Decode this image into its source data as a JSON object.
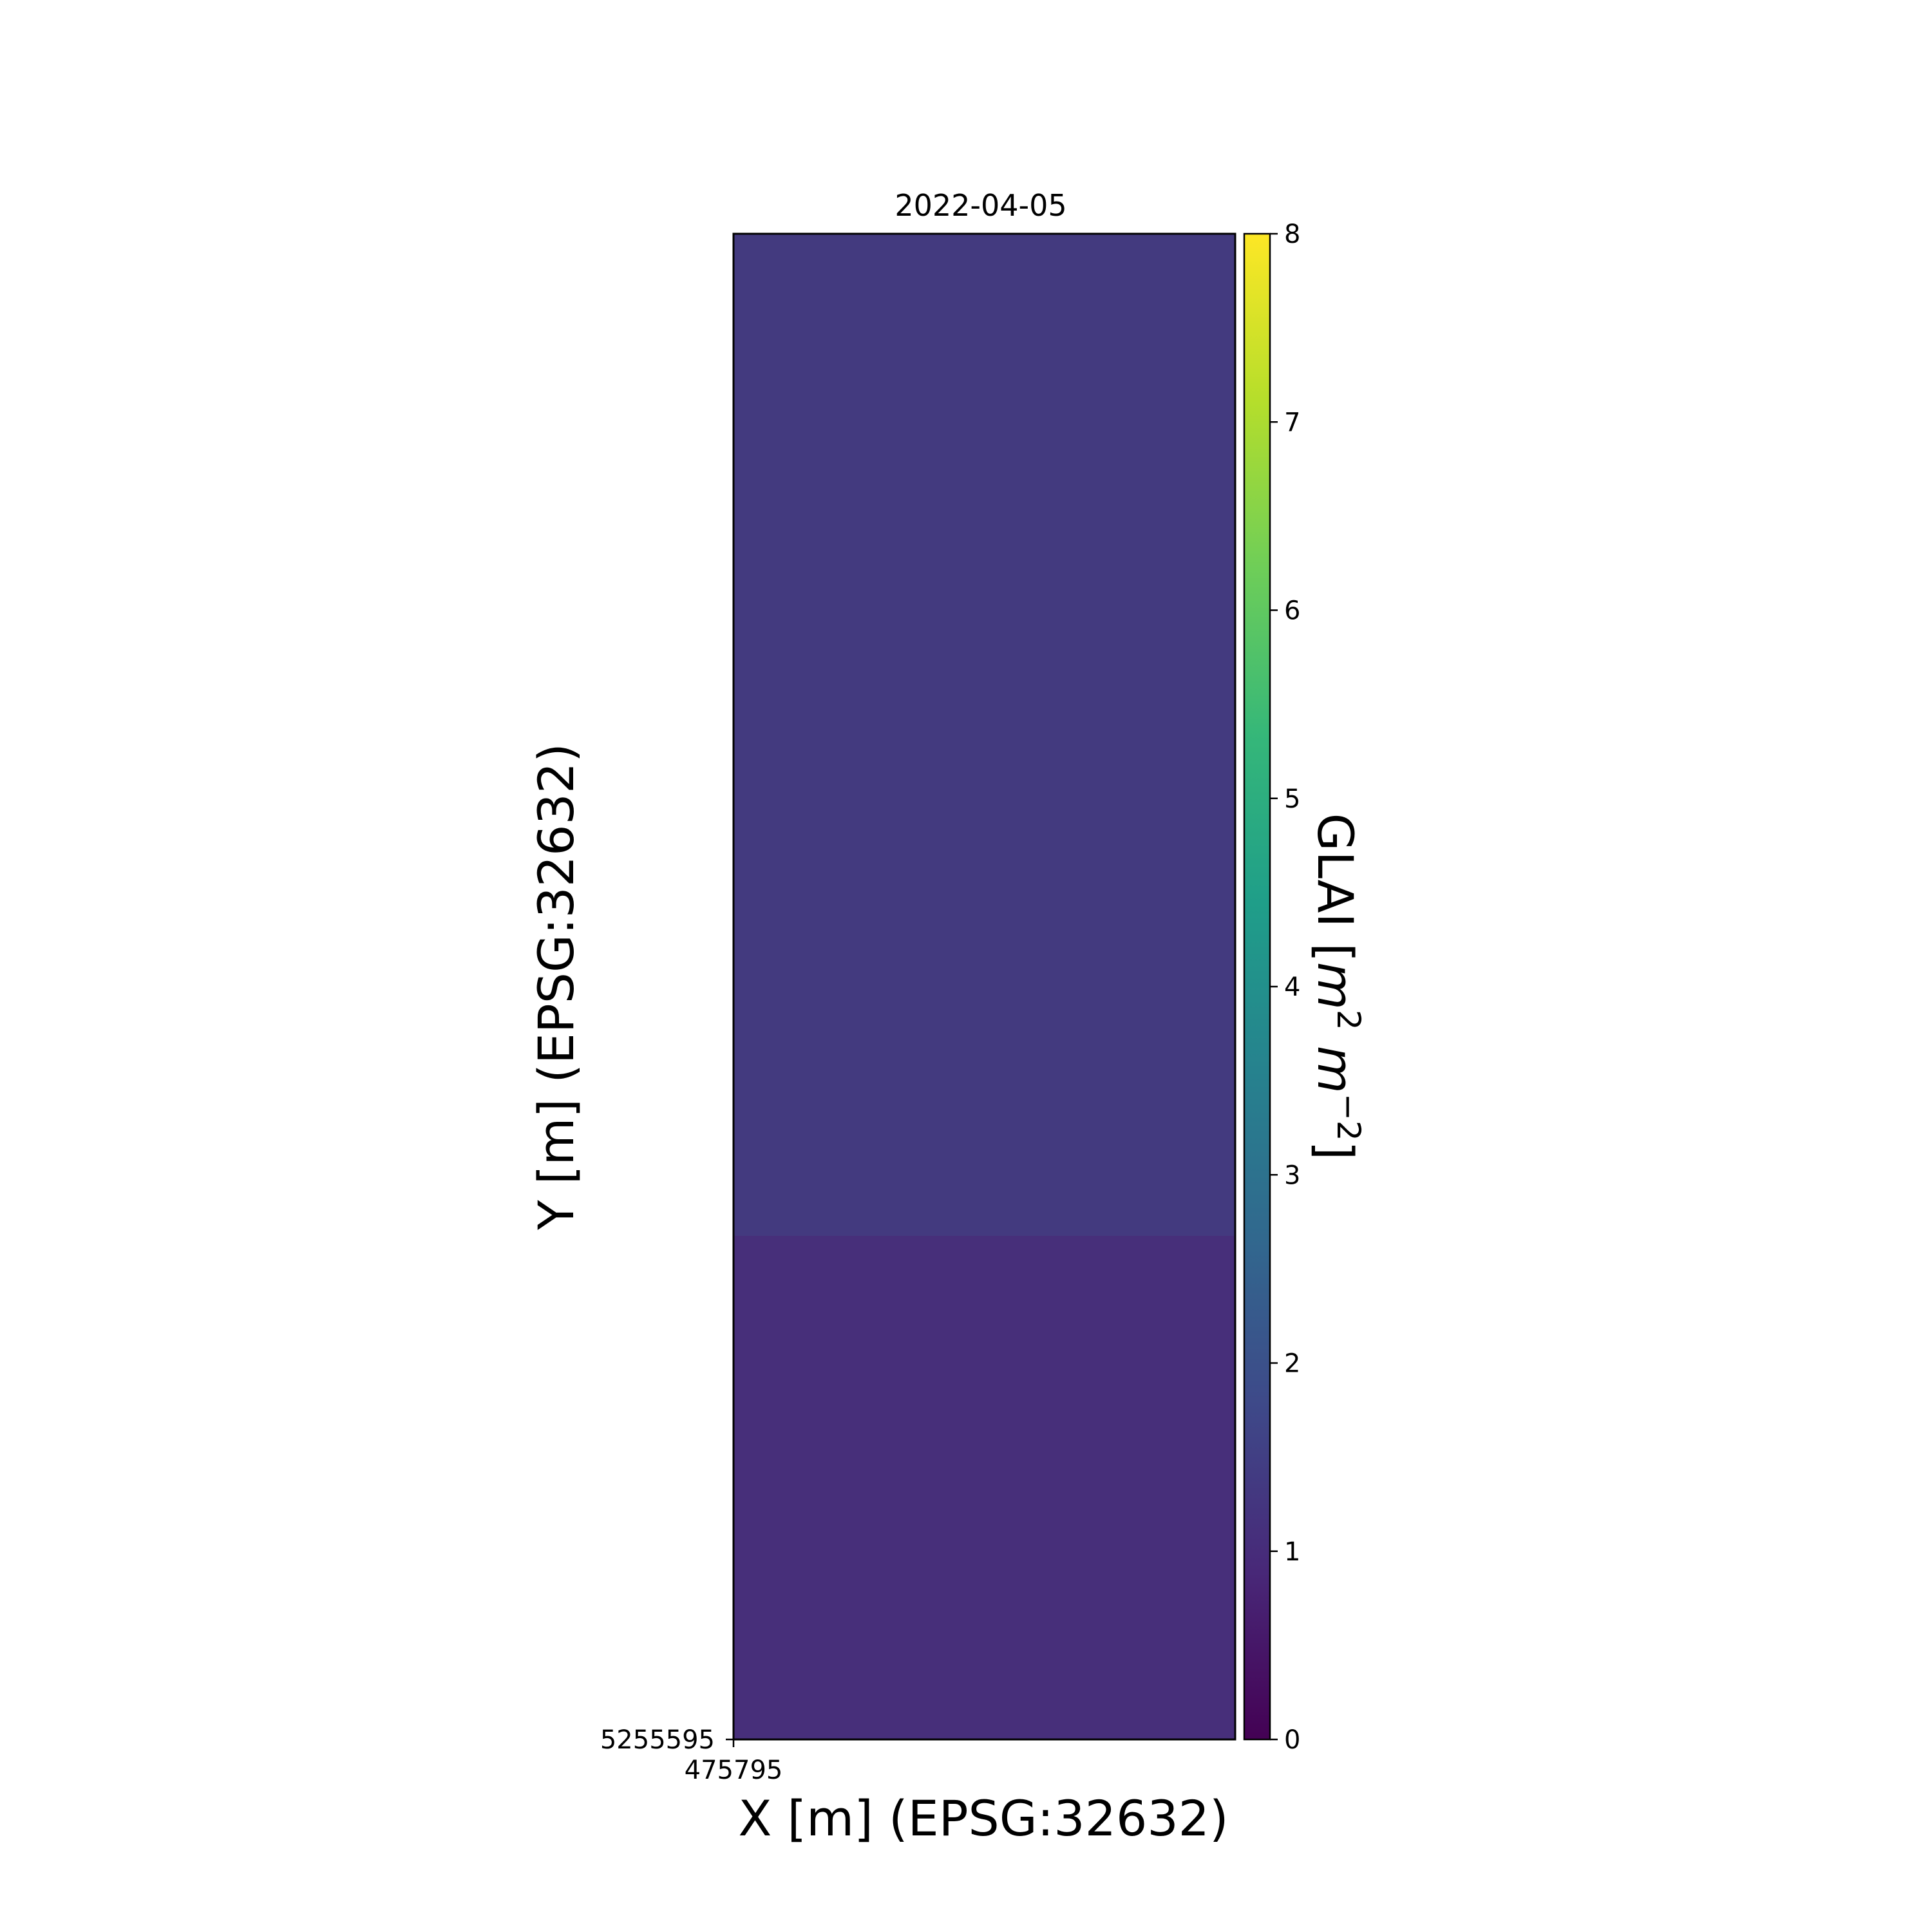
{
  "chart_data": {
    "type": "heatmap",
    "title": "2022-04-05",
    "xlabel": "X [m] (EPSG:32632)",
    "ylabel": "Y [m] (EPSG:32632)",
    "x_ticks": [
      "475795"
    ],
    "y_ticks": [
      "5255595"
    ],
    "cells": [
      {
        "row": 0,
        "value": 1.38,
        "color": "#433a7f"
      },
      {
        "row": 1,
        "value": 0.9,
        "color": "#472f7a"
      }
    ],
    "colorbar": {
      "label_main": "GLAI [",
      "label_m1": "m",
      "label_sup1": "2",
      "label_m2": "m",
      "label_sup2": "−2",
      "label_end": "]",
      "vmin": 0,
      "vmax": 8,
      "ticks": [
        "0",
        "1",
        "2",
        "3",
        "4",
        "5",
        "6",
        "7",
        "8"
      ],
      "colormap": "viridis",
      "stops": [
        "#440154",
        "#482878",
        "#3e4989",
        "#31688e",
        "#26828e",
        "#1f9e89",
        "#35b779",
        "#6ece58",
        "#b5de2b",
        "#fde725"
      ]
    }
  }
}
